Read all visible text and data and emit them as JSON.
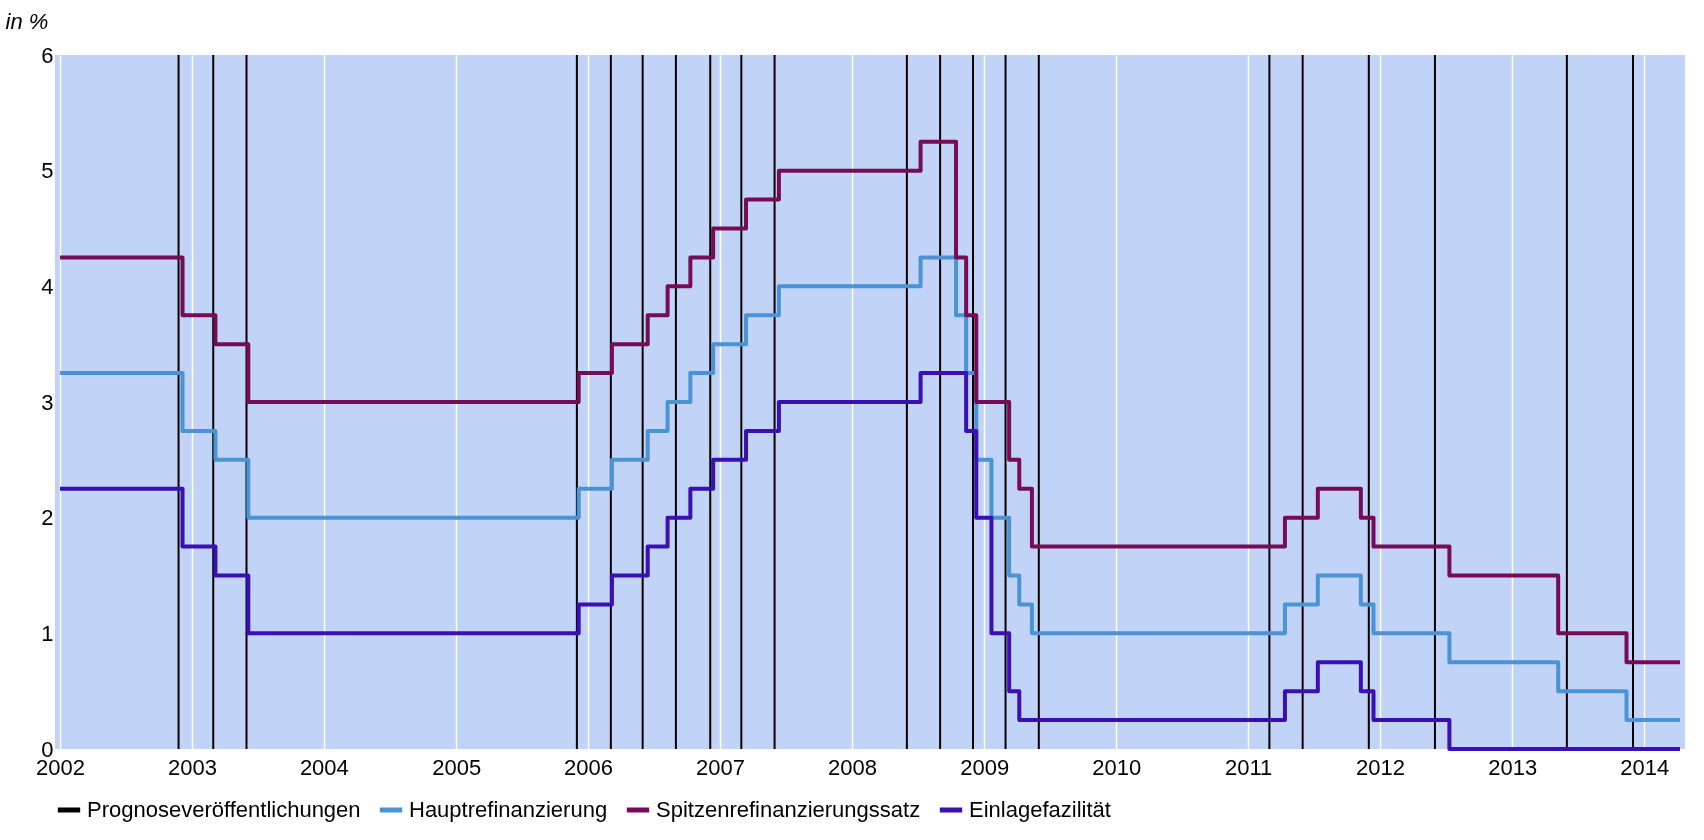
{
  "chart_data": {
    "type": "step",
    "ylabel": "in %",
    "xlim": [
      "2002-01-01",
      "2014-04-10"
    ],
    "xticks": [
      {
        "value": "2002-01-01",
        "label": "2002"
      },
      {
        "value": "2003-01-01",
        "label": "2003"
      },
      {
        "value": "2004-01-01",
        "label": "2004"
      },
      {
        "value": "2005-01-01",
        "label": "2005"
      },
      {
        "value": "2006-01-01",
        "label": "2006"
      },
      {
        "value": "2007-01-01",
        "label": "2007"
      },
      {
        "value": "2008-01-01",
        "label": "2008"
      },
      {
        "value": "2009-01-01",
        "label": "2009"
      },
      {
        "value": "2010-01-01",
        "label": "2010"
      },
      {
        "value": "2011-01-01",
        "label": "2011"
      },
      {
        "value": "2012-01-01",
        "label": "2012"
      },
      {
        "value": "2013-01-01",
        "label": "2013"
      },
      {
        "value": "2014-01-01",
        "label": "2014"
      }
    ],
    "ylim": [
      0,
      6
    ],
    "yticks": [
      0,
      1,
      2,
      3,
      4,
      5,
      6
    ],
    "grid": "x",
    "legend": "bottom",
    "series": [
      {
        "name": "Prognoseveröffentlichungen",
        "type": "bar",
        "color": "#000000",
        "x": [
          "2002-11-25",
          "2003-03-01",
          "2003-06-01",
          "2005-12-01",
          "2006-03-05",
          "2006-06-01",
          "2006-09-01",
          "2006-12-05",
          "2007-03-01",
          "2007-06-01",
          "2008-06-01",
          "2008-09-01",
          "2008-12-01",
          "2009-03-01",
          "2009-06-01",
          "2011-03-01",
          "2011-06-01",
          "2011-12-01",
          "2012-06-01",
          "2013-06-01",
          "2013-12-01"
        ],
        "values": [
          6,
          6,
          6,
          6,
          6,
          6,
          6,
          6,
          6,
          6,
          6,
          6,
          6,
          6,
          6,
          6,
          6,
          6,
          6,
          6,
          6
        ]
      },
      {
        "name": "Hauptrefinanzierung",
        "color": "#4a93d4",
        "x": [
          "2002-01-01",
          "2002-12-06",
          "2003-03-07",
          "2003-06-06",
          "2005-12-06",
          "2006-03-08",
          "2006-06-15",
          "2006-08-09",
          "2006-10-11",
          "2006-12-13",
          "2007-03-14",
          "2007-06-13",
          "2008-07-09",
          "2008-10-15",
          "2008-11-12",
          "2008-12-10",
          "2009-01-21",
          "2009-03-11",
          "2009-04-08",
          "2009-05-13",
          "2011-04-13",
          "2011-07-13",
          "2011-11-09",
          "2011-12-14",
          "2012-07-11",
          "2013-05-08",
          "2013-11-13",
          "2014-04-10"
        ],
        "values": [
          3.25,
          2.75,
          2.5,
          2.0,
          2.25,
          2.5,
          2.75,
          3.0,
          3.25,
          3.5,
          3.75,
          4.0,
          4.25,
          3.75,
          3.25,
          2.5,
          2.0,
          1.5,
          1.25,
          1.0,
          1.25,
          1.5,
          1.25,
          1.0,
          0.75,
          0.5,
          0.25,
          0.25
        ]
      },
      {
        "name": "Spitzenrefinanzierungssatz",
        "color": "#760c55",
        "x": [
          "2002-01-01",
          "2002-12-06",
          "2003-03-07",
          "2003-06-06",
          "2005-12-06",
          "2006-03-08",
          "2006-06-15",
          "2006-08-09",
          "2006-10-11",
          "2006-12-13",
          "2007-03-14",
          "2007-06-13",
          "2008-07-09",
          "2008-10-15",
          "2008-11-12",
          "2008-12-10",
          "2009-01-21",
          "2009-03-11",
          "2009-04-08",
          "2009-05-13",
          "2011-04-13",
          "2011-07-13",
          "2011-11-09",
          "2011-12-14",
          "2012-07-11",
          "2013-05-08",
          "2013-11-13",
          "2014-04-10"
        ],
        "values": [
          4.25,
          3.75,
          3.5,
          3.0,
          3.25,
          3.5,
          3.75,
          4.0,
          4.25,
          4.5,
          4.75,
          5.0,
          5.25,
          4.25,
          3.75,
          3.0,
          3.0,
          2.5,
          2.25,
          1.75,
          2.0,
          2.25,
          2.0,
          1.75,
          1.5,
          1.0,
          0.75,
          0.75
        ]
      },
      {
        "name": "Einlagefazilität",
        "color": "#3a10b4",
        "x": [
          "2002-01-01",
          "2002-12-06",
          "2003-03-07",
          "2003-06-06",
          "2005-12-06",
          "2006-03-08",
          "2006-06-15",
          "2006-08-09",
          "2006-10-11",
          "2006-12-13",
          "2007-03-14",
          "2007-06-13",
          "2008-07-09",
          "2008-10-15",
          "2008-11-12",
          "2008-12-10",
          "2009-01-21",
          "2009-03-11",
          "2009-04-08",
          "2009-05-13",
          "2011-04-13",
          "2011-07-13",
          "2011-11-09",
          "2011-12-14",
          "2012-07-11",
          "2013-05-08",
          "2013-11-13",
          "2014-04-10"
        ],
        "values": [
          2.25,
          1.75,
          1.5,
          1.0,
          1.25,
          1.5,
          1.75,
          2.0,
          2.25,
          2.5,
          2.75,
          3.0,
          3.25,
          3.25,
          2.75,
          2.0,
          1.0,
          0.5,
          0.25,
          0.25,
          0.5,
          0.75,
          0.5,
          0.25,
          0.0,
          0.0,
          0.0,
          0.0
        ]
      }
    ]
  }
}
